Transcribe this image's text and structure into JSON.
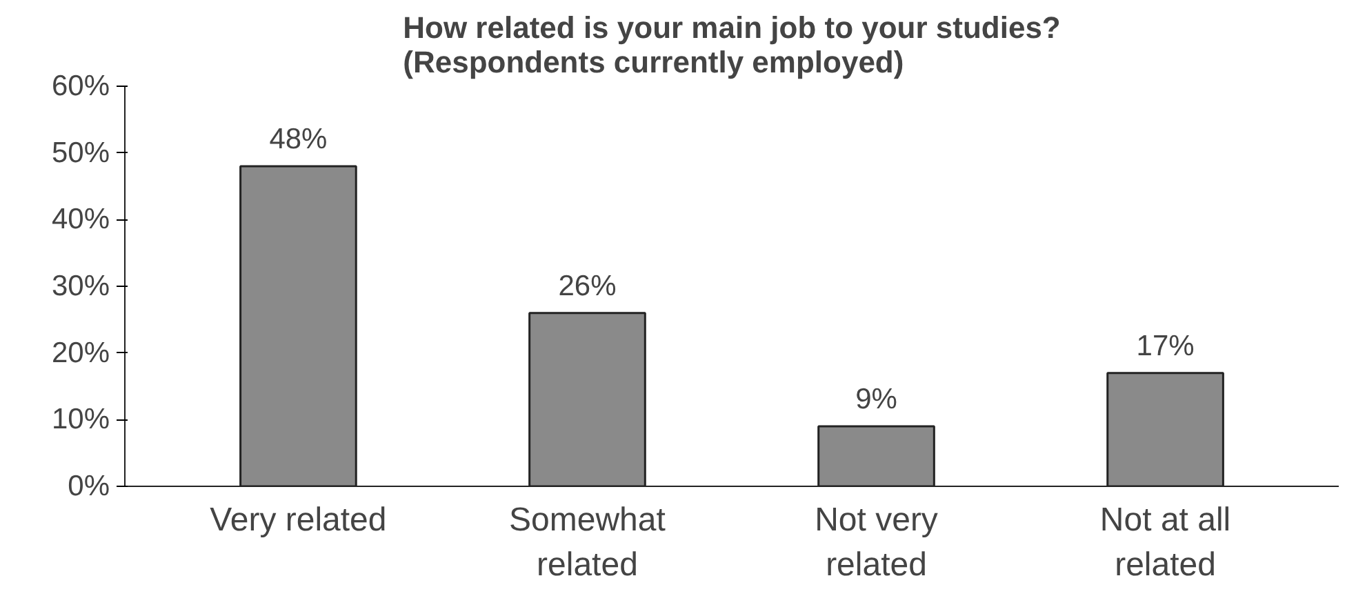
{
  "chart_data": {
    "type": "bar",
    "title": "How related is your main job to your studies?\n(Respondents currently employed)",
    "categories": [
      "Very related",
      "Somewhat\nrelated",
      "Not very\nrelated",
      "Not at all\nrelated"
    ],
    "values": [
      48,
      26,
      9,
      17
    ],
    "value_labels": [
      "48%",
      "26%",
      "9%",
      "17%"
    ],
    "color": "#8a8a8a",
    "ylim": [
      0,
      60
    ],
    "yticks": [
      {
        "value": 0,
        "label": "0%"
      },
      {
        "value": 10,
        "label": "10%"
      },
      {
        "value": 20,
        "label": "20%"
      },
      {
        "value": 30,
        "label": "30%"
      },
      {
        "value": 40,
        "label": "40%"
      },
      {
        "value": 50,
        "label": "50%"
      },
      {
        "value": 60,
        "label": "60%"
      }
    ],
    "grid": false
  }
}
